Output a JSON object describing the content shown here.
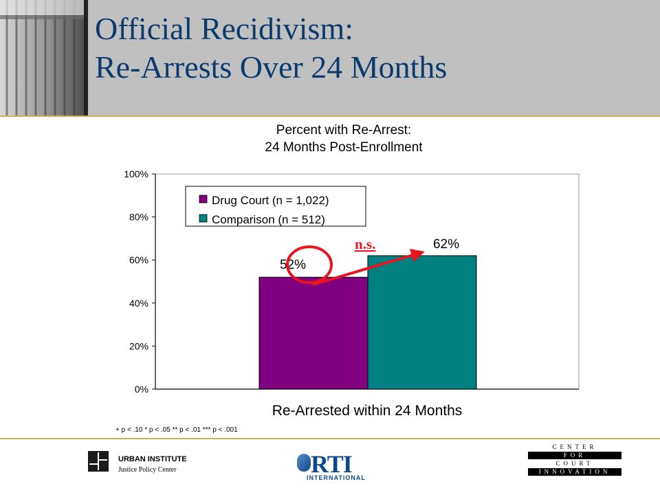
{
  "page": {
    "title_line1": "Official Recidivism:",
    "title_line2": "Re-Arrests Over 24 Months"
  },
  "chart_data": {
    "type": "bar",
    "title_line1": "Percent with Re-Arrest:",
    "title_line2": "24 Months Post-Enrollment",
    "xlabel": "Re-Arrested within 24 Months",
    "ylabel": "",
    "ylim": [
      0,
      100
    ],
    "yticks": [
      "0%",
      "20%",
      "40%",
      "60%",
      "80%",
      "100%"
    ],
    "ytick_values": [
      0,
      20,
      40,
      60,
      80,
      100
    ],
    "grid": false,
    "legend_position": "top-left",
    "series": [
      {
        "name": "Drug Court (n = 1,022)",
        "values": [
          52
        ],
        "label": "52%",
        "color": "#800080"
      },
      {
        "name": "Comparison (n = 512)",
        "values": [
          62
        ],
        "label": "62%",
        "color": "#008080"
      }
    ],
    "annotation": "n.s.",
    "annotation_color": "#e8141e"
  },
  "footnote": "+ p < .10   * p < .05   ** p < .01   *** p < .001",
  "logos": {
    "urban_name": "URBAN INSTITUTE",
    "urban_sub": "Justice Policy Center",
    "rti_main": "RTI",
    "rti_sub": "INTERNATIONAL",
    "cci_lines": [
      "CENTER",
      "FOR",
      "COURT",
      "INNOVATION"
    ]
  }
}
